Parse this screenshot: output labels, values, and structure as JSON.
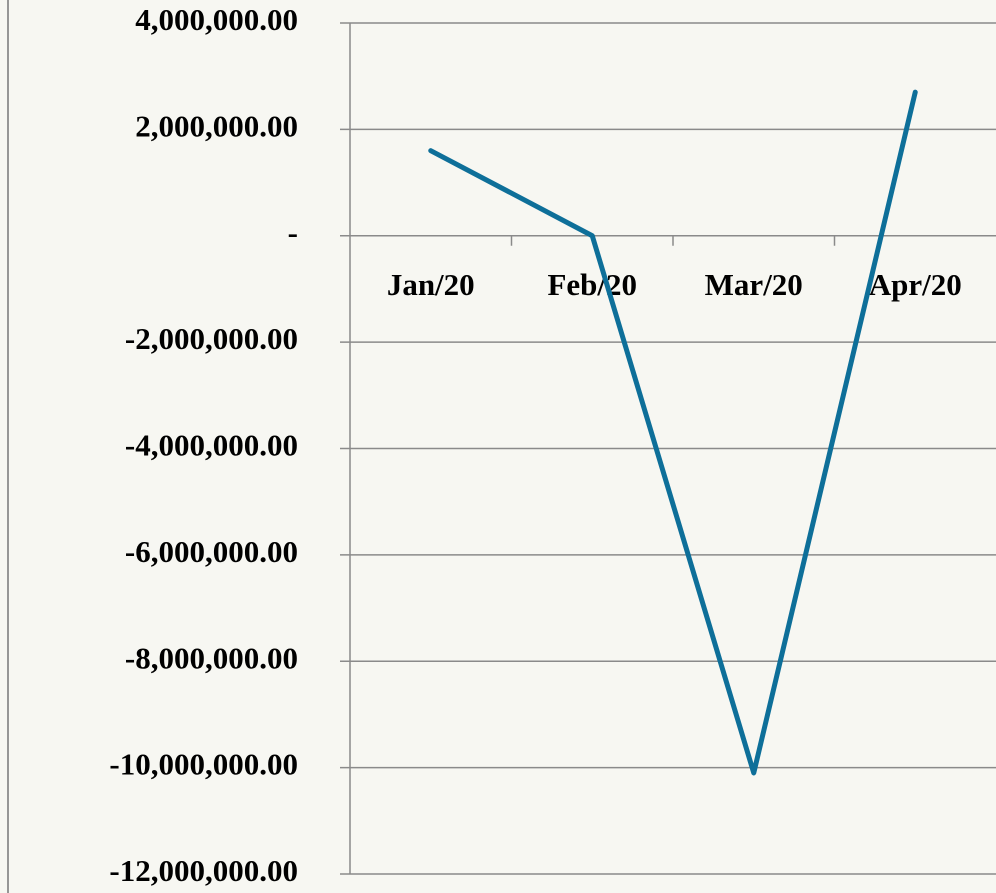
{
  "chart_data": {
    "type": "line",
    "categories": [
      "Jan/20",
      "Feb/20",
      "Mar/20",
      "Apr/20"
    ],
    "series": [
      {
        "name": null,
        "color": "#0e6f99",
        "values": [
          1600000,
          0,
          -10100000,
          2700000
        ]
      }
    ],
    "ylim": [
      -12000000,
      4000000
    ],
    "yticks": [
      {
        "value": -12000000,
        "label": "-12,000,000.00"
      },
      {
        "value": -10000000,
        "label": "-10,000,000.00"
      },
      {
        "value": -8000000,
        "label": "-8,000,000.00"
      },
      {
        "value": -6000000,
        "label": "-6,000,000.00"
      },
      {
        "value": -4000000,
        "label": "-4,000,000.00"
      },
      {
        "value": -2000000,
        "label": "-2,000,000.00"
      },
      {
        "value": 0,
        "label": "-"
      },
      {
        "value": 2000000,
        "label": "2,000,000.00"
      },
      {
        "value": 4000000,
        "label": "4,000,000.00"
      }
    ],
    "grid": true
  }
}
